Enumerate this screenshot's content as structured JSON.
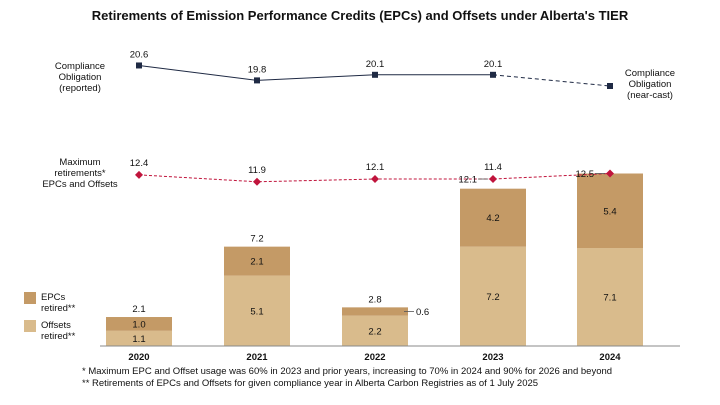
{
  "chart_data": {
    "type": "bar",
    "title": "Retirements of Emission Performance Credits (EPCs) and Offsets under Alberta's TIER",
    "categories": [
      "2020",
      "2021",
      "2022",
      "2023",
      "2024"
    ],
    "series": [
      {
        "name": "Offsets retired**",
        "color": "#d9bb8c",
        "values": [
          1.1,
          5.1,
          2.2,
          7.2,
          7.1
        ]
      },
      {
        "name": "EPCs retired**",
        "color": "#c49a66",
        "values": [
          1.0,
          2.1,
          0.6,
          4.2,
          5.4
        ]
      }
    ],
    "totals": [
      2.1,
      7.2,
      2.8,
      11.4,
      12.5
    ],
    "compliance_obligation": {
      "values": [
        20.6,
        19.8,
        20.1,
        20.1,
        null
      ],
      "label_reported": "Compliance Obligation (reported)",
      "label_nearcast": "Compliance Obligation (near-cast)",
      "color": "#1f2a44"
    },
    "maximum_retirements": {
      "values": [
        12.4,
        11.9,
        12.1,
        12.1,
        12.5
      ],
      "label": "Maximum retirements* EPCs and Offsets",
      "color": "#c0143c"
    },
    "ylim": [
      0,
      13
    ]
  },
  "footnotes": [
    "* Maximum EPC and Offset usage was 60% in 2023 and prior years, increasing to 70% in 2024 and 90% for 2026 and beyond",
    "** Retirements of EPCs and Offsets for given compliance year in Alberta Carbon Registries as of 1 July 2025"
  ],
  "side_labels": {
    "compliance": [
      "Compliance",
      "Obligation",
      "(reported)"
    ],
    "nearcast": [
      "Compliance",
      "Obligation",
      "(near-cast)"
    ],
    "maximum": [
      "Maximum",
      "retirements*",
      "EPCs and Offsets"
    ],
    "legend_epcs": [
      "EPCs",
      "retired**"
    ],
    "legend_offsets": [
      "Offsets",
      "retired**"
    ]
  }
}
